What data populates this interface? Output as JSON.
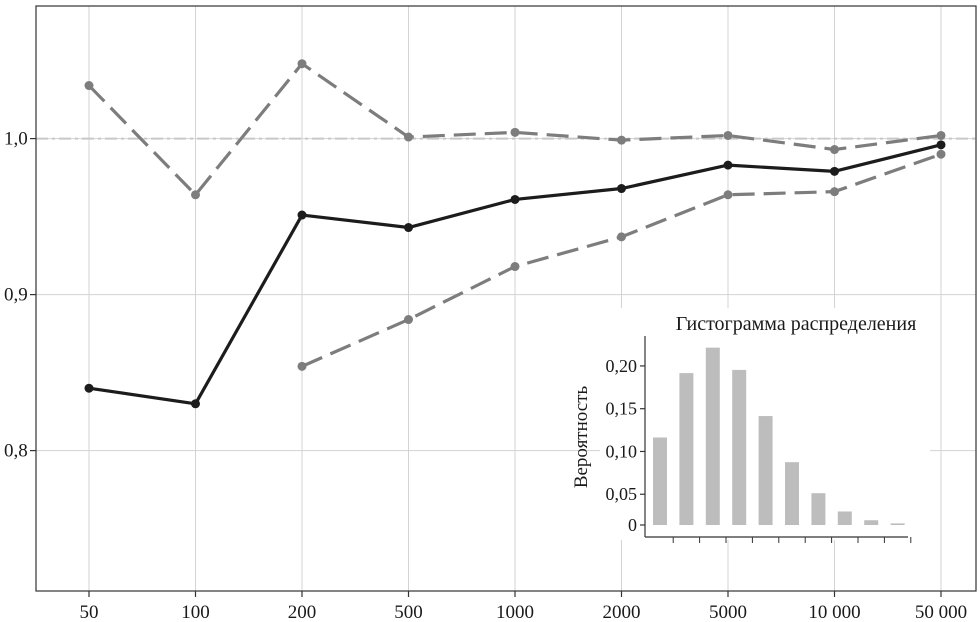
{
  "chart_data": [
    {
      "type": "line",
      "title": "",
      "xlabel": "",
      "ylabel": "",
      "x_scale": "categorical",
      "categories": [
        "50",
        "100",
        "200",
        "500",
        "1000",
        "2000",
        "5000",
        "10 000",
        "50 000"
      ],
      "y_ticks": [
        "0,8",
        "0,9",
        "1,0"
      ],
      "ylim": [
        0.71,
        1.085
      ],
      "y_tick_values": [
        0.8,
        0.9,
        1.0
      ],
      "grid": true,
      "reference_line": {
        "y": 1.0,
        "style": "dash-dot",
        "color": "#c8c8c8"
      },
      "series": [
        {
          "style": "solid",
          "color": "#1c1c1c",
          "values": [
            0.84,
            0.83,
            0.951,
            0.943,
            0.961,
            0.968,
            0.983,
            0.979,
            0.996
          ]
        },
        {
          "style": "dashed",
          "color": "#7d7d7d",
          "values": [
            1.034,
            0.964,
            1.048,
            1.001,
            1.004,
            0.999,
            1.002,
            0.993,
            1.002
          ]
        },
        {
          "style": "dashed",
          "color": "#7d7d7d",
          "values": [
            null,
            null,
            0.854,
            0.884,
            0.918,
            0.937,
            0.964,
            0.966,
            0.99
          ]
        }
      ]
    },
    {
      "type": "bar",
      "title": "Гистограмма распределения",
      "ylabel": "Вероятность",
      "xlabel": "",
      "y_ticks": [
        "0",
        "0,05",
        "0,10",
        "0,15",
        "0,20"
      ],
      "y_tick_values": [
        0,
        0.05,
        0.1,
        0.15,
        0.2
      ],
      "ylim": [
        0,
        0.235
      ],
      "color": "#bdbdbd",
      "values": [
        0.11,
        0.191,
        0.223,
        0.195,
        0.137,
        0.079,
        0.04,
        0.017,
        0.006,
        0.002
      ]
    }
  ]
}
